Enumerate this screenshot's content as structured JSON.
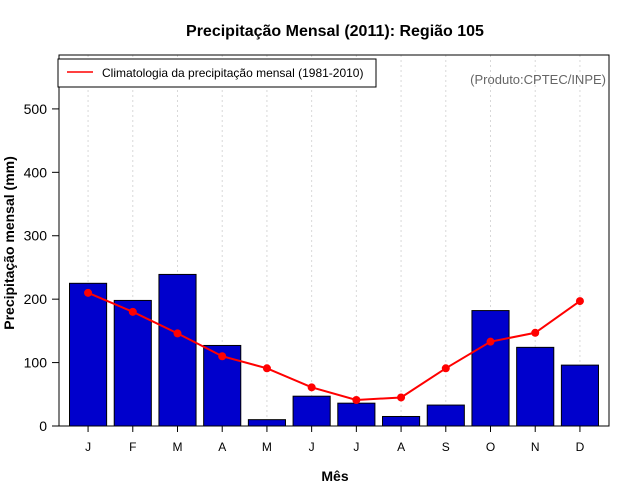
{
  "chart_data": {
    "type": "bar",
    "title": "Precipitação Mensal (2011): Região 105",
    "xlabel": "Mês",
    "ylabel": "Precipitação mensal (mm)",
    "categories": [
      "J",
      "F",
      "M",
      "A",
      "M",
      "J",
      "J",
      "A",
      "S",
      "O",
      "N",
      "D"
    ],
    "ylim": [
      0,
      585
    ],
    "yticks": [
      0,
      100,
      200,
      300,
      400,
      500
    ],
    "series": [
      {
        "name": "Precipitação mensal (2011)",
        "kind": "bar",
        "color": "#0000cc",
        "values": [
          225,
          198,
          239,
          127,
          10,
          47,
          36,
          15,
          33,
          182,
          124,
          96
        ]
      },
      {
        "name": "Climatologia da precipitação mensal (1981-2010)",
        "kind": "line",
        "color": "#ff0000",
        "values": [
          210,
          180,
          146,
          110,
          91,
          61,
          41,
          45,
          91,
          133,
          147,
          197
        ]
      }
    ],
    "legend": {
      "position": "top-left",
      "entries": [
        "Climatologia da precipitação mensal (1981-2010)"
      ]
    },
    "source_note": "(Produto:CPTEC/INPE)",
    "grid": "vertical dotted"
  }
}
